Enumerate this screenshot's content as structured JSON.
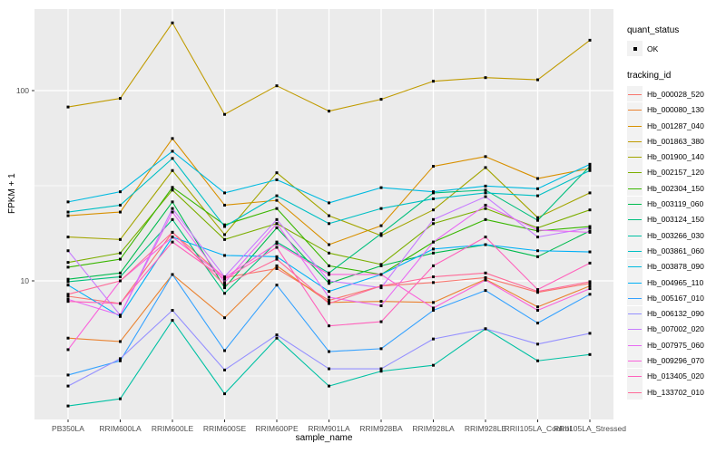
{
  "ui": {
    "y_axis_title": "FPKM + 1",
    "x_axis_title": "sample_name",
    "legend": {
      "quant_title": "quant_status",
      "quant_ok_label": "OK",
      "tracking_title": "tracking_id"
    }
  },
  "colors": {
    "panel_bg": "#ebebeb",
    "grid": "#ffffff",
    "tick": "#333333",
    "axis_text": "#4d4d4d",
    "point": "#000000",
    "legend_key_bg": "#f2f2f2"
  },
  "chart_data": {
    "type": "line",
    "title": "",
    "xlabel": "sample_name",
    "ylabel": "FPKM + 1",
    "y_scale": "log10",
    "y_domain": [
      1.87,
      268
    ],
    "y_major_gridlines": [
      10,
      100
    ],
    "y_minor_gridlines": [
      3.162,
      31.62
    ],
    "y_tick_labels": [
      {
        "value": 100,
        "label": "100"
      },
      {
        "value": 10,
        "label": "10"
      }
    ],
    "grid": "on",
    "legend_position": "right",
    "point_marker": "small-black-square",
    "categories": [
      "PB350LA",
      "RRIM600LA",
      "RRIM600LE",
      "RRIM600SE",
      "RRIM600PE",
      "RRIM901LA",
      "RRIM928BA",
      "RRIM928LA",
      "RRIM928LE",
      "RRII105LA_Control",
      "RRII105LA_Stressed"
    ],
    "series": [
      {
        "name": "Hb_000028_520",
        "color": "#F8766D",
        "values": [
          8.3,
          7.6,
          18,
          10.4,
          11.6,
          7.9,
          9.4,
          9.8,
          10.4,
          8.7,
          9.7
        ]
      },
      {
        "name": "Hb_000080_130",
        "color": "#EA8331",
        "values": [
          5.0,
          4.8,
          10.8,
          6.4,
          12.0,
          7.7,
          7.8,
          7.7,
          10.2,
          7.3,
          9.4
        ]
      },
      {
        "name": "Hb_001287_040",
        "color": "#D89000",
        "values": [
          22,
          23,
          56,
          25,
          26.5,
          15.5,
          19.5,
          40,
          45,
          34.5,
          39
        ]
      },
      {
        "name": "Hb_001863_380",
        "color": "#C09B00",
        "values": [
          82,
          91,
          227,
          75,
          106,
          78,
          90,
          112,
          117,
          114,
          184
        ]
      },
      {
        "name": "Hb_001900_140",
        "color": "#A3A500",
        "values": [
          17,
          16.5,
          38,
          17.5,
          37,
          22,
          17.3,
          23.6,
          39.4,
          21.5,
          29
        ]
      },
      {
        "name": "Hb_002157_120",
        "color": "#7CAE00",
        "values": [
          12.5,
          14,
          30,
          16.5,
          20,
          14,
          12.2,
          20,
          24,
          19,
          23.6
        ]
      },
      {
        "name": "Hb_002304_150",
        "color": "#39B600",
        "values": [
          11.8,
          13,
          31,
          19.7,
          24,
          12,
          10.8,
          16,
          21,
          18.3,
          19.3
        ]
      },
      {
        "name": "Hb_003119_060",
        "color": "#00BB4E",
        "values": [
          10.2,
          11,
          26,
          9.2,
          19,
          9.7,
          12,
          14,
          15.5,
          13.4,
          18.3
        ]
      },
      {
        "name": "Hb_003124_150",
        "color": "#00BF7D",
        "values": [
          9.9,
          10.5,
          21,
          8.6,
          16,
          11,
          17.7,
          29,
          30,
          20.8,
          40
        ]
      },
      {
        "name": "Hb_003266_030",
        "color": "#00C1A3",
        "values": [
          2.2,
          2.4,
          6.2,
          2.55,
          5.0,
          2.8,
          3.35,
          3.6,
          5.6,
          3.8,
          4.1
        ]
      },
      {
        "name": "Hb_003861_060",
        "color": "#00BFC4",
        "values": [
          23,
          25,
          44,
          19.3,
          28,
          20,
          24,
          27,
          29,
          28,
          38
        ]
      },
      {
        "name": "Hb_003878_090",
        "color": "#00BAE0",
        "values": [
          26,
          29.4,
          48,
          29,
          34,
          25.7,
          30.9,
          29.4,
          31.5,
          30.5,
          41
        ]
      },
      {
        "name": "Hb_004965_110",
        "color": "#00B0F6",
        "values": [
          9.5,
          6.5,
          17,
          13.6,
          13.4,
          8.8,
          10.8,
          14.7,
          15.5,
          14.4,
          14.2
        ]
      },
      {
        "name": "Hb_005167_010",
        "color": "#35A2FF",
        "values": [
          3.2,
          3.8,
          10.8,
          4.3,
          9.5,
          4.25,
          4.4,
          7.0,
          8.9,
          6.0,
          8.5
        ]
      },
      {
        "name": "Hb_006132_090",
        "color": "#9590FF",
        "values": [
          2.8,
          3.9,
          7.0,
          3.4,
          5.2,
          3.45,
          3.45,
          4.95,
          5.6,
          4.65,
          5.3
        ]
      },
      {
        "name": "Hb_007002_020",
        "color": "#C77CFF",
        "values": [
          14.4,
          6.6,
          24,
          10.5,
          21,
          10,
          9.2,
          21,
          27.7,
          17,
          19
        ]
      },
      {
        "name": "Hb_007975_060",
        "color": "#E76BF3",
        "values": [
          8.0,
          6.6,
          23,
          9.8,
          20,
          8.2,
          7.4,
          16,
          25,
          18.5,
          18
        ]
      },
      {
        "name": "Hb_009296_070",
        "color": "#FA62DB",
        "values": [
          4.35,
          10,
          17,
          10.4,
          15.7,
          10.8,
          10.8,
          7.2,
          10.1,
          7.0,
          9.1
        ]
      },
      {
        "name": "Hb_013405_020",
        "color": "#FF62BC",
        "values": [
          7.8,
          7.6,
          16,
          10.2,
          15,
          5.8,
          6.1,
          12,
          17,
          9.0,
          12.4
        ]
      },
      {
        "name": "Hb_133702_010",
        "color": "#FF6A98",
        "values": [
          8.5,
          10,
          18,
          9.5,
          13,
          7.6,
          9.4,
          10.5,
          11,
          8.8,
          9.9
        ]
      }
    ]
  }
}
